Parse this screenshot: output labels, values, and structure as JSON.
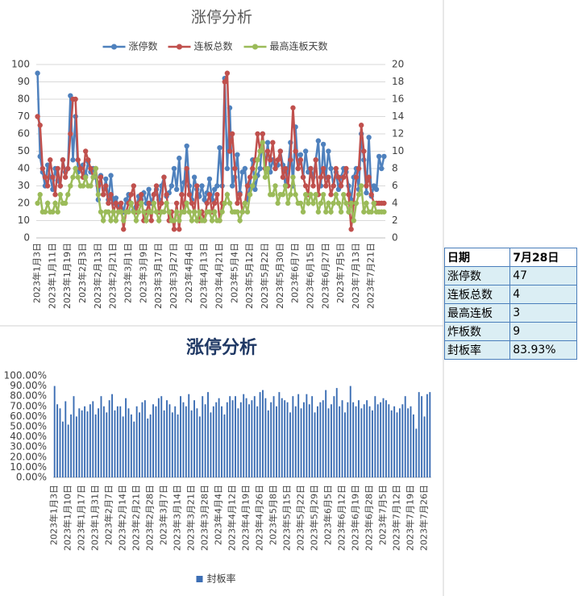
{
  "chart_data": [
    {
      "type": "line",
      "title": "涨停分析",
      "categories": [
        "2023年1月3日",
        null,
        null,
        null,
        null,
        null,
        "2023年1月11日",
        null,
        null,
        null,
        null,
        null,
        "2023年1月19日",
        null,
        null,
        null,
        null,
        null,
        "2023年2月3日",
        null,
        null,
        null,
        null,
        null,
        "2023年2月13日",
        null,
        null,
        null,
        null,
        null,
        "2023年2月21日",
        null,
        null,
        null,
        null,
        null,
        "2023年3月1日",
        null,
        null,
        null,
        null,
        null,
        "2023年3月9日",
        null,
        null,
        null,
        null,
        null,
        "2023年3月17日",
        null,
        null,
        null,
        null,
        null,
        "2023年3月27日",
        null,
        null,
        null,
        null,
        null,
        "2023年4月4日",
        null,
        null,
        null,
        null,
        null,
        "2023年4月13日",
        null,
        null,
        null,
        null,
        null,
        "2023年4月21日",
        null,
        null,
        null,
        null,
        null,
        "2023年5月4日",
        null,
        null,
        null,
        null,
        null,
        "2023年5月12日",
        null,
        null,
        null,
        null,
        null,
        "2023年5月22日",
        null,
        null,
        null,
        null,
        null,
        "2023年5月30日",
        null,
        null,
        null,
        null,
        null,
        "2023年6月7日",
        null,
        null,
        null,
        null,
        null,
        "2023年6月15日",
        null,
        null,
        null,
        null,
        null,
        "2023年6月27日",
        null,
        null,
        null,
        null,
        null,
        "2023年7月5日",
        null,
        null,
        null,
        null,
        null,
        "2023年7月13日",
        null,
        null,
        null,
        null,
        null,
        "2023年7月21日",
        null,
        null,
        null,
        null,
        null
      ],
      "series": [
        {
          "name": "涨停数",
          "color": "#4f81bd",
          "values": [
            95,
            47,
            38,
            30,
            42,
            35,
            28,
            40,
            33,
            30,
            45,
            38,
            40,
            82,
            45,
            70,
            38,
            40,
            42,
            36,
            44,
            38,
            40,
            35,
            22,
            36,
            25,
            34,
            22,
            36,
            20,
            23,
            18,
            20,
            15,
            22,
            25,
            20,
            16,
            18,
            24,
            22,
            26,
            20,
            28,
            20,
            25,
            28,
            22,
            30,
            35,
            24,
            26,
            30,
            40,
            28,
            46,
            25,
            32,
            53,
            30,
            22,
            35,
            28,
            24,
            30,
            22,
            26,
            34,
            22,
            28,
            30,
            52,
            30,
            92,
            40,
            75,
            30,
            35,
            48,
            26,
            38,
            40,
            22,
            30,
            45,
            28,
            36,
            40,
            60,
            40,
            55,
            38,
            45,
            40,
            42,
            50,
            42,
            30,
            40,
            55,
            30,
            64,
            40,
            48,
            35,
            50,
            38,
            40,
            35,
            45,
            56,
            30,
            54,
            35,
            50,
            40,
            30,
            38,
            28,
            35,
            40,
            38,
            30,
            22,
            35,
            40,
            28,
            60,
            45,
            26,
            58,
            24,
            30,
            28,
            47,
            40,
            47
          ]
        },
        {
          "name": "连板总数",
          "color": "#c0504d",
          "axis": "y2",
          "values": [
            14,
            13,
            8,
            7,
            6,
            9,
            7,
            5,
            8,
            6,
            9,
            7,
            8,
            12,
            16,
            16,
            9,
            8,
            7,
            10,
            9,
            8,
            7,
            8,
            6,
            7,
            5,
            6,
            4,
            5,
            3,
            4,
            3,
            4,
            1,
            3,
            4,
            5,
            6,
            3,
            4,
            5,
            2,
            3,
            4,
            2,
            5,
            6,
            3,
            4,
            7,
            5,
            2,
            3,
            1,
            4,
            1,
            5,
            3,
            8,
            5,
            4,
            3,
            6,
            2,
            3,
            2,
            4,
            5,
            3,
            4,
            5,
            2,
            4,
            18,
            19,
            10,
            12,
            8,
            4,
            5,
            3,
            4,
            6,
            7,
            8,
            9,
            12,
            10,
            12,
            8,
            10,
            9,
            11,
            8,
            9,
            10,
            7,
            8,
            6,
            9,
            15,
            10,
            8,
            9,
            7,
            6,
            5,
            8,
            6,
            9,
            5,
            7,
            8,
            6,
            7,
            5,
            6,
            8,
            7,
            6,
            7,
            8,
            5,
            1,
            4,
            7,
            8,
            13,
            10,
            6,
            7,
            5,
            4,
            4,
            4,
            4,
            4
          ]
        },
        {
          "name": "最高连板天数",
          "color": "#9bbb59",
          "axis": "y2",
          "values": [
            4,
            5,
            3,
            3,
            4,
            3,
            3,
            4,
            3,
            5,
            4,
            4,
            5,
            6,
            7,
            8,
            7,
            6,
            6,
            7,
            6,
            6,
            7,
            8,
            5,
            3,
            2,
            3,
            3,
            2,
            3,
            2,
            3,
            3,
            2,
            3,
            3,
            4,
            3,
            2,
            3,
            4,
            3,
            2,
            3,
            3,
            4,
            3,
            2,
            3,
            3,
            4,
            3,
            2,
            2,
            3,
            2,
            3,
            3,
            4,
            3,
            2,
            3,
            2,
            3,
            2,
            2,
            3,
            3,
            2,
            3,
            2,
            2,
            3,
            4,
            5,
            4,
            3,
            3,
            3,
            2,
            3,
            4,
            3,
            5,
            6,
            7,
            9,
            10,
            11,
            7,
            8,
            5,
            5,
            6,
            4,
            5,
            5,
            6,
            4,
            5,
            7,
            5,
            4,
            4,
            3,
            5,
            4,
            5,
            4,
            5,
            3,
            4,
            5,
            3,
            4,
            3,
            4,
            5,
            4,
            3,
            5,
            4,
            3,
            4,
            2,
            4,
            5,
            6,
            3,
            4,
            3,
            3,
            4,
            3,
            3,
            3,
            3
          ]
        }
      ],
      "ylim": [
        0,
        100
      ],
      "yticks": [
        0,
        10,
        20,
        30,
        40,
        50,
        60,
        70,
        80,
        90,
        100
      ],
      "y2lim": [
        0,
        20
      ],
      "y2ticks": [
        0,
        2,
        4,
        6,
        8,
        10,
        12,
        14,
        16,
        18,
        20
      ],
      "grid": true
    },
    {
      "type": "bar",
      "title": "涨停分析",
      "categories": [
        "2023年1月3日",
        null,
        null,
        null,
        null,
        "2023年1月10日",
        null,
        null,
        null,
        null,
        "2023年1月17日",
        null,
        null,
        null,
        null,
        "2023年1月31日",
        null,
        null,
        null,
        null,
        "2023年2月7日",
        null,
        null,
        null,
        null,
        "2023年2月14日",
        null,
        null,
        null,
        null,
        "2023年2月21日",
        null,
        null,
        null,
        null,
        "2023年2月28日",
        null,
        null,
        null,
        null,
        "2023年3月7日",
        null,
        null,
        null,
        null,
        "2023年3月14日",
        null,
        null,
        null,
        null,
        "2023年3月21日",
        null,
        null,
        null,
        null,
        "2023年3月28日",
        null,
        null,
        null,
        null,
        "2023年4月4日",
        null,
        null,
        null,
        null,
        "2023年4月12日",
        null,
        null,
        null,
        null,
        "2023年4月19日",
        null,
        null,
        null,
        null,
        "2023年4月26日",
        null,
        null,
        null,
        null,
        "2023年5月8日",
        null,
        null,
        null,
        null,
        "2023年5月15日",
        null,
        null,
        null,
        null,
        "2023年5月22日",
        null,
        null,
        null,
        null,
        "2023年5月29日",
        null,
        null,
        null,
        null,
        "2023年6月5日",
        null,
        null,
        null,
        null,
        "2023年6月12日",
        null,
        null,
        null,
        null,
        "2023年6月19日",
        null,
        null,
        null,
        null,
        "2023年6月28日",
        null,
        null,
        null,
        null,
        "2023年7月5日",
        null,
        null,
        null,
        null,
        "2023年7月12日",
        null,
        null,
        null,
        null,
        "2023年7月19日",
        null,
        null,
        null,
        null,
        "2023年7月26日",
        null,
        null
      ],
      "series": [
        {
          "name": "封板率",
          "color": "#3c6eb4",
          "values": [
            90,
            72,
            68,
            55,
            75,
            52,
            62,
            80,
            60,
            68,
            66,
            70,
            65,
            72,
            75,
            62,
            68,
            80,
            70,
            64,
            76,
            82,
            66,
            70,
            70,
            60,
            78,
            68,
            62,
            55,
            70,
            64,
            74,
            76,
            58,
            62,
            72,
            70,
            78,
            80,
            66,
            76,
            72,
            64,
            70,
            62,
            80,
            74,
            70,
            82,
            66,
            76,
            68,
            60,
            80,
            72,
            84,
            64,
            70,
            74,
            78,
            70,
            62,
            74,
            80,
            76,
            80,
            68,
            74,
            82,
            78,
            72,
            76,
            80,
            70,
            84,
            86,
            78,
            66,
            74,
            80,
            70,
            84,
            78,
            76,
            74,
            64,
            80,
            70,
            82,
            68,
            74,
            82,
            72,
            80,
            64,
            70,
            74,
            76,
            86,
            68,
            72,
            80,
            88,
            70,
            76,
            64,
            74,
            90,
            74,
            70,
            76,
            68,
            72,
            76,
            70,
            66,
            80,
            72,
            74,
            78,
            76,
            72,
            66,
            70,
            64,
            68,
            72,
            80,
            68,
            70,
            62,
            48,
            84,
            80,
            60,
            82,
            84
          ]
        }
      ],
      "ylim": [
        0,
        100
      ],
      "yticks": [
        {
          "value": 0,
          "label": "0.00%"
        },
        {
          "value": 10,
          "label": "10.00%"
        },
        {
          "value": 20,
          "label": "20.00%"
        },
        {
          "value": 30,
          "label": "30.00%"
        },
        {
          "value": 40,
          "label": "40.00%"
        },
        {
          "value": 50,
          "label": "50.00%"
        },
        {
          "value": 60,
          "label": "60.00%"
        },
        {
          "value": 70,
          "label": "70.00%"
        },
        {
          "value": 80,
          "label": "80.00%"
        },
        {
          "value": 90,
          "label": "90.00%"
        },
        {
          "value": 100,
          "label": "100.00%"
        }
      ],
      "grid": false
    }
  ],
  "table": {
    "rows": [
      [
        "日期",
        "7月28日"
      ],
      [
        "涨停数",
        "47"
      ],
      [
        "连板总数",
        "4"
      ],
      [
        "最高连板",
        "3"
      ],
      [
        "炸板数",
        "9"
      ],
      [
        "封板率",
        "83.93%"
      ]
    ]
  }
}
